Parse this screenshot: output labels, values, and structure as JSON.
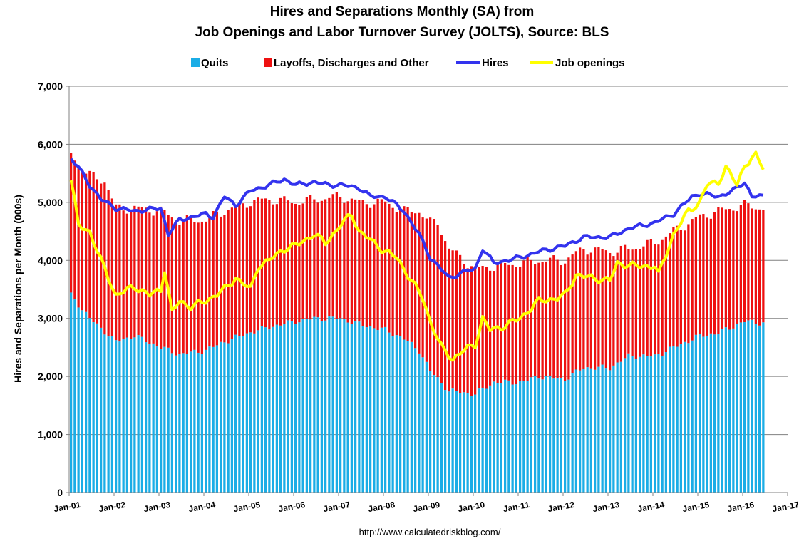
{
  "chart_data": {
    "type": "bar",
    "stacked": true,
    "title": "Hires and Separations Monthly (SA) from",
    "subtitle": "Job Openings and Labor Turnover Survey (JOLTS), Source: BLS",
    "ylabel": "Hires and Separations per Month (000s)",
    "xlabel": "",
    "ylim": [
      0,
      7000
    ],
    "y_ticks": [
      0,
      1000,
      2000,
      3000,
      4000,
      5000,
      6000,
      7000
    ],
    "y_tick_labels": [
      "0",
      "1,000",
      "2,000",
      "3,000",
      "4,000",
      "5,000",
      "6,000",
      "7,000"
    ],
    "x_tick_labels": [
      "Jan-01",
      "Jan-02",
      "Jan-03",
      "Jan-04",
      "Jan-05",
      "Jan-06",
      "Jan-07",
      "Jan-08",
      "Jan-09",
      "Jan-10",
      "Jan-11",
      "Jan-12",
      "Jan-13",
      "Jan-14",
      "Jan-15",
      "Jan-16",
      "Jan-17"
    ],
    "x_range": [
      "2001-01",
      "2017-01"
    ],
    "grid": true,
    "legend_position": "top",
    "source_note": "http://www.calculatedriskblog.com/",
    "series": [
      {
        "name": "Quits",
        "kind": "bar",
        "color": "#1BADE6",
        "anchors": [
          [
            "2001-01",
            3400
          ],
          [
            "2001-06",
            3000
          ],
          [
            "2002-01",
            2600
          ],
          [
            "2002-06",
            2700
          ],
          [
            "2003-01",
            2500
          ],
          [
            "2003-06",
            2380
          ],
          [
            "2004-01",
            2450
          ],
          [
            "2004-06",
            2600
          ],
          [
            "2005-01",
            2760
          ],
          [
            "2005-06",
            2850
          ],
          [
            "2006-01",
            2950
          ],
          [
            "2006-06",
            3000
          ],
          [
            "2007-01",
            3000
          ],
          [
            "2007-06",
            2900
          ],
          [
            "2008-01",
            2800
          ],
          [
            "2008-06",
            2650
          ],
          [
            "2008-10",
            2450
          ],
          [
            "2009-01",
            2100
          ],
          [
            "2009-06",
            1750
          ],
          [
            "2010-01",
            1700
          ],
          [
            "2010-06",
            1900
          ],
          [
            "2011-01",
            1900
          ],
          [
            "2011-06",
            2000
          ],
          [
            "2012-01",
            1950
          ],
          [
            "2012-06",
            2150
          ],
          [
            "2013-01",
            2150
          ],
          [
            "2013-06",
            2350
          ],
          [
            "2014-01",
            2350
          ],
          [
            "2014-06",
            2500
          ],
          [
            "2015-01",
            2700
          ],
          [
            "2015-06",
            2750
          ],
          [
            "2016-01",
            2950
          ],
          [
            "2016-06",
            2920
          ]
        ]
      },
      {
        "name": "Layoffs, Discharges and Other",
        "kind": "bar",
        "color": "#EE1111",
        "anchors": [
          [
            "2001-01",
            2450
          ],
          [
            "2001-04",
            2400
          ],
          [
            "2001-10",
            2600
          ],
          [
            "2002-01",
            2300
          ],
          [
            "2002-06",
            2200
          ],
          [
            "2003-01",
            2350
          ],
          [
            "2003-06",
            2300
          ],
          [
            "2004-01",
            2250
          ],
          [
            "2004-06",
            2250
          ],
          [
            "2005-01",
            2250
          ],
          [
            "2005-06",
            2200
          ],
          [
            "2006-01",
            2050
          ],
          [
            "2006-06",
            2050
          ],
          [
            "2007-01",
            2100
          ],
          [
            "2007-06",
            2100
          ],
          [
            "2008-01",
            2200
          ],
          [
            "2008-06",
            2200
          ],
          [
            "2009-01",
            2550
          ],
          [
            "2009-03",
            2700
          ],
          [
            "2009-06",
            2450
          ],
          [
            "2010-01",
            2150
          ],
          [
            "2010-06",
            2000
          ],
          [
            "2011-01",
            2050
          ],
          [
            "2011-06",
            2000
          ],
          [
            "2012-01",
            2050
          ],
          [
            "2012-06",
            2050
          ],
          [
            "2013-01",
            2000
          ],
          [
            "2013-06",
            1850
          ],
          [
            "2014-01",
            1950
          ],
          [
            "2014-06",
            2000
          ],
          [
            "2015-01",
            2050
          ],
          [
            "2015-06",
            2100
          ],
          [
            "2016-01",
            2000
          ],
          [
            "2016-06",
            1980
          ]
        ]
      },
      {
        "name": "Hires",
        "kind": "line",
        "color": "#3333EE",
        "anchors": [
          [
            "2001-01",
            5750
          ],
          [
            "2001-03",
            5600
          ],
          [
            "2001-06",
            5300
          ],
          [
            "2001-09",
            5050
          ],
          [
            "2002-01",
            4900
          ],
          [
            "2002-06",
            4850
          ],
          [
            "2003-01",
            4900
          ],
          [
            "2003-03",
            4450
          ],
          [
            "2003-06",
            4700
          ],
          [
            "2004-01",
            4800
          ],
          [
            "2004-03",
            4750
          ],
          [
            "2004-06",
            5100
          ],
          [
            "2004-09",
            4950
          ],
          [
            "2005-01",
            5200
          ],
          [
            "2005-06",
            5300
          ],
          [
            "2005-10",
            5400
          ],
          [
            "2006-01",
            5300
          ],
          [
            "2006-06",
            5350
          ],
          [
            "2006-10",
            5300
          ],
          [
            "2007-01",
            5300
          ],
          [
            "2007-06",
            5250
          ],
          [
            "2007-09",
            5100
          ],
          [
            "2008-01",
            5100
          ],
          [
            "2008-06",
            4850
          ],
          [
            "2008-10",
            4450
          ],
          [
            "2009-01",
            4050
          ],
          [
            "2009-06",
            3700
          ],
          [
            "2009-10",
            3800
          ],
          [
            "2010-01",
            3850
          ],
          [
            "2010-03",
            4200
          ],
          [
            "2010-06",
            3950
          ],
          [
            "2011-01",
            4050
          ],
          [
            "2011-06",
            4150
          ],
          [
            "2012-01",
            4250
          ],
          [
            "2012-06",
            4400
          ],
          [
            "2013-01",
            4400
          ],
          [
            "2013-06",
            4550
          ],
          [
            "2014-01",
            4650
          ],
          [
            "2014-06",
            4800
          ],
          [
            "2014-11",
            5100
          ],
          [
            "2015-01",
            5150
          ],
          [
            "2015-06",
            5100
          ],
          [
            "2015-10",
            5200
          ],
          [
            "2016-01",
            5350
          ],
          [
            "2016-03",
            5100
          ],
          [
            "2016-06",
            5100
          ]
        ]
      },
      {
        "name": "Job openings",
        "kind": "line",
        "color": "#FFFF00",
        "anchors": [
          [
            "2001-01",
            5400
          ],
          [
            "2001-03",
            4600
          ],
          [
            "2001-06",
            4500
          ],
          [
            "2001-09",
            4000
          ],
          [
            "2002-01",
            3400
          ],
          [
            "2002-06",
            3550
          ],
          [
            "2002-10",
            3400
          ],
          [
            "2003-01",
            3500
          ],
          [
            "2003-02",
            3850
          ],
          [
            "2003-04",
            3100
          ],
          [
            "2003-06",
            3300
          ],
          [
            "2003-09",
            3200
          ],
          [
            "2004-01",
            3300
          ],
          [
            "2004-06",
            3500
          ],
          [
            "2004-09",
            3700
          ],
          [
            "2005-01",
            3500
          ],
          [
            "2005-03",
            3900
          ],
          [
            "2005-06",
            4000
          ],
          [
            "2005-10",
            4200
          ],
          [
            "2006-01",
            4250
          ],
          [
            "2006-06",
            4450
          ],
          [
            "2006-09",
            4300
          ],
          [
            "2007-01",
            4600
          ],
          [
            "2007-04",
            4800
          ],
          [
            "2007-06",
            4500
          ],
          [
            "2008-01",
            4150
          ],
          [
            "2008-04",
            4050
          ],
          [
            "2008-08",
            3650
          ],
          [
            "2008-11",
            3350
          ],
          [
            "2009-01",
            2950
          ],
          [
            "2009-04",
            2500
          ],
          [
            "2009-07",
            2300
          ],
          [
            "2009-10",
            2450
          ],
          [
            "2010-01",
            2550
          ],
          [
            "2010-03",
            3000
          ],
          [
            "2010-05",
            2800
          ],
          [
            "2010-08",
            2850
          ],
          [
            "2011-01",
            3000
          ],
          [
            "2011-06",
            3300
          ],
          [
            "2011-11",
            3350
          ],
          [
            "2012-01",
            3400
          ],
          [
            "2012-04",
            3750
          ],
          [
            "2012-08",
            3700
          ],
          [
            "2013-01",
            3650
          ],
          [
            "2013-03",
            3950
          ],
          [
            "2013-08",
            3900
          ],
          [
            "2014-01",
            3900
          ],
          [
            "2014-02",
            3750
          ],
          [
            "2014-06",
            4450
          ],
          [
            "2014-10",
            4850
          ],
          [
            "2015-01",
            5000
          ],
          [
            "2015-03",
            5300
          ],
          [
            "2015-06",
            5350
          ],
          [
            "2015-08",
            5600
          ],
          [
            "2015-11",
            5300
          ],
          [
            "2016-01",
            5650
          ],
          [
            "2016-04",
            5800
          ],
          [
            "2016-06",
            5600
          ]
        ]
      }
    ]
  }
}
